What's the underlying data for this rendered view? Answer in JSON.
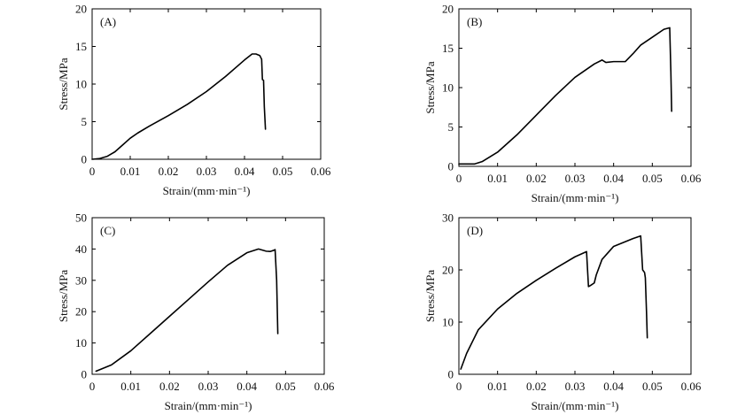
{
  "chart_data": [
    {
      "type": "line",
      "panel_label": "(A)",
      "xlabel": "Strain/(mm·min⁻¹)",
      "ylabel": "Stress/MPa",
      "xlim": [
        0,
        0.06
      ],
      "ylim": [
        0,
        20
      ],
      "x_ticks": [
        "0",
        "0.01",
        "0.02",
        "0.03",
        "0.04",
        "0.05",
        "0.06"
      ],
      "y_ticks": [
        "0",
        "5",
        "10",
        "15",
        "20"
      ],
      "x_tick_values": [
        0,
        0.01,
        0.02,
        0.03,
        0.04,
        0.05,
        0.06
      ],
      "y_tick_values": [
        0,
        5,
        10,
        15,
        20
      ],
      "series": [
        {
          "x": [
            0,
            0.002,
            0.004,
            0.006,
            0.008,
            0.01,
            0.012,
            0.015,
            0.02,
            0.025,
            0.03,
            0.035,
            0.04,
            0.042,
            0.043,
            0.044,
            0.0445,
            0.0447,
            0.045,
            0.0452,
            0.0455
          ],
          "y": [
            0,
            0.1,
            0.4,
            1.0,
            1.9,
            2.8,
            3.5,
            4.4,
            5.8,
            7.3,
            9.0,
            11.0,
            13.2,
            14.0,
            14.0,
            13.8,
            13.3,
            10.6,
            10.5,
            7.0,
            4.0
          ]
        }
      ]
    },
    {
      "type": "line",
      "panel_label": "(B)",
      "xlabel": "Strain/(mm·min⁻¹)",
      "ylabel": "Stress/MPa",
      "xlim": [
        0,
        0.06
      ],
      "ylim": [
        0,
        20
      ],
      "x_ticks": [
        "0",
        "0.01",
        "0.02",
        "0.03",
        "0.04",
        "0.05",
        "0.06"
      ],
      "y_ticks": [
        "0",
        "5",
        "10",
        "15",
        "20"
      ],
      "x_tick_values": [
        0,
        0.01,
        0.02,
        0.03,
        0.04,
        0.05,
        0.06
      ],
      "y_tick_values": [
        0,
        5,
        10,
        15,
        20
      ],
      "series": [
        {
          "x": [
            0,
            0.004,
            0.006,
            0.01,
            0.015,
            0.02,
            0.025,
            0.03,
            0.035,
            0.037,
            0.038,
            0.04,
            0.043,
            0.045,
            0.047,
            0.05,
            0.053,
            0.0545,
            0.0548,
            0.055
          ],
          "y": [
            0.3,
            0.3,
            0.6,
            1.8,
            4.0,
            6.5,
            9.0,
            11.3,
            13.0,
            13.5,
            13.2,
            13.3,
            13.3,
            14.3,
            15.4,
            16.4,
            17.4,
            17.6,
            12.0,
            7.0
          ]
        }
      ]
    },
    {
      "type": "line",
      "panel_label": "(C)",
      "xlabel": "Strain/(mm·min⁻¹)",
      "ylabel": "Stress/MPa",
      "xlim": [
        0,
        0.06
      ],
      "ylim": [
        0,
        50
      ],
      "x_ticks": [
        "0",
        "0.01",
        "0.02",
        "0.03",
        "0.04",
        "0.05",
        "0.06"
      ],
      "y_ticks": [
        "0",
        "10",
        "20",
        "30",
        "40",
        "50"
      ],
      "x_tick_values": [
        0,
        0.01,
        0.02,
        0.03,
        0.04,
        0.05,
        0.06
      ],
      "y_tick_values": [
        0,
        10,
        20,
        30,
        40,
        50
      ],
      "series": [
        {
          "x": [
            0.001,
            0.005,
            0.01,
            0.015,
            0.02,
            0.025,
            0.03,
            0.035,
            0.04,
            0.043,
            0.045,
            0.046,
            0.047,
            0.0473,
            0.0477,
            0.048
          ],
          "y": [
            1.0,
            3.0,
            7.5,
            13.0,
            18.5,
            24.0,
            29.5,
            34.8,
            38.8,
            40.0,
            39.3,
            39.2,
            39.6,
            39.8,
            30.0,
            13.0
          ]
        }
      ]
    },
    {
      "type": "line",
      "panel_label": "(D)",
      "xlabel": "Strain/(mm·min⁻¹)",
      "ylabel": "Stress/MPa",
      "xlim": [
        0,
        0.06
      ],
      "ylim": [
        0,
        30
      ],
      "x_ticks": [
        "0",
        "0.01",
        "0.02",
        "0.03",
        "0.04",
        "0.05",
        "0.06"
      ],
      "y_ticks": [
        "0",
        "10",
        "20",
        "30"
      ],
      "x_tick_values": [
        0,
        0.01,
        0.02,
        0.03,
        0.04,
        0.05,
        0.06
      ],
      "y_tick_values": [
        0,
        10,
        20,
        30
      ],
      "series": [
        {
          "x": [
            0.0005,
            0.002,
            0.005,
            0.01,
            0.015,
            0.02,
            0.025,
            0.03,
            0.033,
            0.0335,
            0.034,
            0.035,
            0.0355,
            0.037,
            0.04,
            0.045,
            0.047,
            0.0475,
            0.048,
            0.0482,
            0.0485,
            0.0487
          ],
          "y": [
            1.0,
            4.0,
            8.5,
            12.5,
            15.5,
            18.0,
            20.3,
            22.5,
            23.5,
            16.8,
            17.0,
            17.5,
            19.0,
            22.0,
            24.5,
            26.0,
            26.5,
            20.0,
            19.5,
            18.5,
            12.0,
            7.0
          ]
        }
      ]
    }
  ]
}
